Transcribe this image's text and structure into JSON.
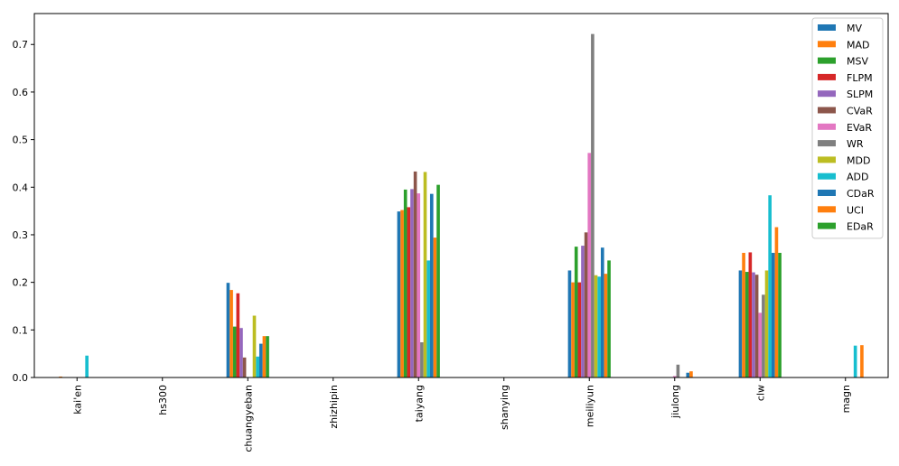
{
  "chart_data": {
    "type": "bar",
    "title": "",
    "xlabel": "",
    "ylabel": "",
    "ylim": [
      0,
      0.765
    ],
    "yticks": [
      0.0,
      0.1,
      0.2,
      0.3,
      0.4,
      0.5,
      0.6,
      0.7
    ],
    "ytick_labels": [
      "0.0",
      "0.1",
      "0.2",
      "0.3",
      "0.4",
      "0.5",
      "0.6",
      "0.7"
    ],
    "categories": [
      "kai'en",
      "hs300",
      "chuangyeban",
      "zhizhipin",
      "taiyang",
      "shanying",
      "meiliyun",
      "jiulong",
      "clw",
      "magn"
    ],
    "legend_position": "upper right",
    "grid": false,
    "series": [
      {
        "name": "MV",
        "color": "#1f77b4",
        "values": [
          0.0,
          0.0,
          0.199,
          0.0,
          0.349,
          0.0,
          0.225,
          0.0,
          0.225,
          0.0
        ]
      },
      {
        "name": "MAD",
        "color": "#ff7f0e",
        "values": [
          0.002,
          0.0,
          0.184,
          0.0,
          0.352,
          0.0,
          0.2,
          0.0,
          0.262,
          0.0
        ]
      },
      {
        "name": "MSV",
        "color": "#2ca02c",
        "values": [
          0.0,
          0.0,
          0.107,
          0.0,
          0.395,
          0.0,
          0.275,
          0.0,
          0.222,
          0.0
        ]
      },
      {
        "name": "FLPM",
        "color": "#d62728",
        "values": [
          0.0,
          0.0,
          0.177,
          0.0,
          0.358,
          0.0,
          0.2,
          0.0,
          0.263,
          0.0
        ]
      },
      {
        "name": "SLPM",
        "color": "#9467bd",
        "values": [
          0.0,
          0.0,
          0.104,
          0.0,
          0.396,
          0.0,
          0.277,
          0.0,
          0.221,
          0.0
        ]
      },
      {
        "name": "CVaR",
        "color": "#8c564b",
        "values": [
          0.0,
          0.0,
          0.042,
          0.0,
          0.433,
          0.0,
          0.305,
          0.0,
          0.216,
          0.0
        ]
      },
      {
        "name": "EVaR",
        "color": "#e377c2",
        "values": [
          0.0,
          0.0,
          0.0,
          0.0,
          0.387,
          0.0,
          0.472,
          0.003,
          0.136,
          0.0
        ]
      },
      {
        "name": "WR",
        "color": "#7f7f7f",
        "values": [
          0.0,
          0.0,
          0.0,
          0.0,
          0.074,
          0.0,
          0.722,
          0.027,
          0.174,
          0.0
        ]
      },
      {
        "name": "MDD",
        "color": "#bcbd22",
        "values": [
          0.0,
          0.0,
          0.13,
          0.0,
          0.432,
          0.0,
          0.215,
          0.0,
          0.225,
          0.0
        ]
      },
      {
        "name": "ADD",
        "color": "#17becf",
        "values": [
          0.046,
          0.0,
          0.044,
          0.0,
          0.246,
          0.0,
          0.212,
          0.0,
          0.383,
          0.067
        ]
      },
      {
        "name": "CDaR",
        "color": "#1f77b4",
        "values": [
          0.0,
          0.0,
          0.071,
          0.0,
          0.386,
          0.0,
          0.273,
          0.01,
          0.262,
          0.0
        ]
      },
      {
        "name": "UCI",
        "color": "#ff7f0e",
        "values": [
          0.0,
          0.0,
          0.087,
          0.0,
          0.294,
          0.0,
          0.218,
          0.013,
          0.316,
          0.068
        ]
      },
      {
        "name": "EDaR",
        "color": "#2ca02c",
        "values": [
          0.0,
          0.0,
          0.087,
          0.0,
          0.405,
          0.0,
          0.246,
          0.0,
          0.262,
          0.0
        ]
      }
    ]
  }
}
